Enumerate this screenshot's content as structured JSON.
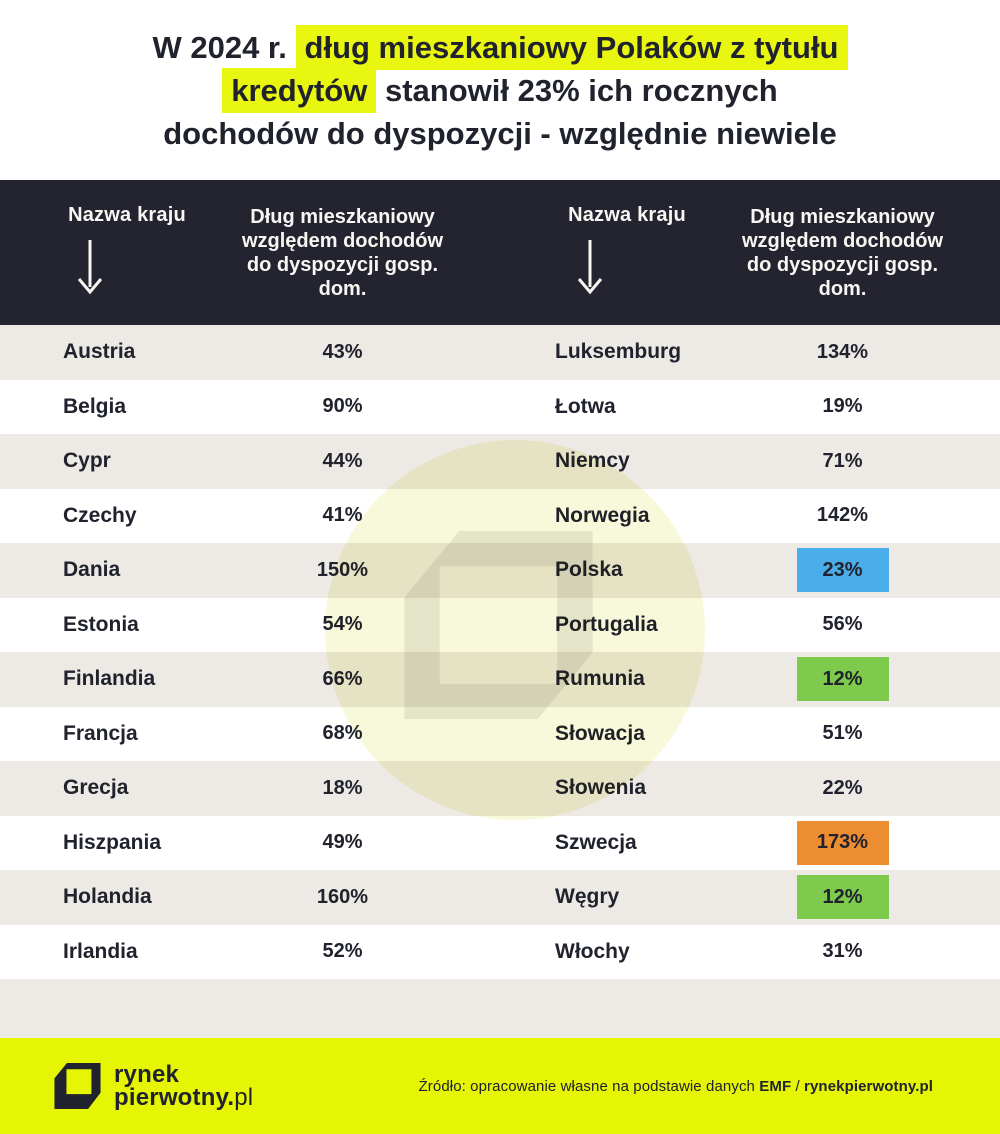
{
  "colors": {
    "header_bg": "#23242f",
    "text_dark": "#20222d",
    "stripe": "#edeae5",
    "row_white": "#ffffff",
    "highlight_yellow": "#e9f60f",
    "footer_yellow": "#e5f503",
    "box_blue": "#4aade9",
    "box_green": "#7dca4d",
    "box_orange": "#ec8d32",
    "watermark_circle": "#f8f8da",
    "watermark_cube": "#ebebeb",
    "header_text": "#f7f6f2"
  },
  "title": {
    "full_text": "W 2024 r. dług mieszkaniowy Polaków z tytułu kredytów stanowił 23% ich rocznych dochodów do dyspozycji - względnie niewiele",
    "lines": [
      {
        "segments": [
          {
            "text": "W 2024 r. ",
            "hl": false
          },
          {
            "text": "dług mieszkaniowy Polaków z tytułu",
            "hl": true
          }
        ]
      },
      {
        "segments": [
          {
            "text": "kredytów",
            "hl": true
          },
          {
            "text": " stanowił 23% ich rocznych",
            "hl": false
          }
        ]
      },
      {
        "segments": [
          {
            "text": "dochodów do dyspozycji - względnie niewiele",
            "hl": false
          }
        ]
      }
    ]
  },
  "table": {
    "header": {
      "country_label": "Nazwa kraju",
      "value_label": "Dług mieszkaniowy względem dochodów do dyspozycji gosp. dom.",
      "value_label_lines": [
        "Dług mieszkaniowy",
        "względem dochodów",
        "do dyspozycji gosp.",
        "dom."
      ]
    },
    "left_rows": [
      {
        "country": "Austria",
        "value": "43%",
        "highlight": null
      },
      {
        "country": "Belgia",
        "value": "90%",
        "highlight": null
      },
      {
        "country": "Cypr",
        "value": "44%",
        "highlight": null
      },
      {
        "country": "Czechy",
        "value": "41%",
        "highlight": null
      },
      {
        "country": "Dania",
        "value": "150%",
        "highlight": null
      },
      {
        "country": "Estonia",
        "value": "54%",
        "highlight": null
      },
      {
        "country": "Finlandia",
        "value": "66%",
        "highlight": null
      },
      {
        "country": "Francja",
        "value": "68%",
        "highlight": null
      },
      {
        "country": "Grecja",
        "value": "18%",
        "highlight": null
      },
      {
        "country": "Hiszpania",
        "value": "49%",
        "highlight": null
      },
      {
        "country": "Holandia",
        "value": "160%",
        "highlight": null
      },
      {
        "country": "Irlandia",
        "value": "52%",
        "highlight": null
      }
    ],
    "right_rows": [
      {
        "country": "Luksemburg",
        "value": "134%",
        "highlight": null
      },
      {
        "country": "Łotwa",
        "value": "19%",
        "highlight": null
      },
      {
        "country": "Niemcy",
        "value": "71%",
        "highlight": null
      },
      {
        "country": "Norwegia",
        "value": "142%",
        "highlight": null
      },
      {
        "country": "Polska",
        "value": "23%",
        "highlight": "box_blue"
      },
      {
        "country": "Portugalia",
        "value": "56%",
        "highlight": null
      },
      {
        "country": "Rumunia",
        "value": "12%",
        "highlight": "box_green"
      },
      {
        "country": "Słowacja",
        "value": "51%",
        "highlight": null
      },
      {
        "country": "Słowenia",
        "value": "22%",
        "highlight": null
      },
      {
        "country": "Szwecja",
        "value": "173%",
        "highlight": "box_orange"
      },
      {
        "country": "Węgry",
        "value": "12%",
        "highlight": "box_green"
      },
      {
        "country": "Włochy",
        "value": "31%",
        "highlight": null
      }
    ]
  },
  "footer": {
    "logo_line1": "rynek",
    "logo_line2_bold": "pierwotny.",
    "logo_line2_light": "pl",
    "source_prefix": "Źródło: opracowanie własne na podstawie danych ",
    "source_emf": "EMF",
    "source_sep": " / ",
    "source_site": "rynekpierwotny.pl"
  },
  "chart_data": {
    "type": "table",
    "title": "W 2024 r. dług mieszkaniowy Polaków z tytułu kredytów stanowił 23% ich rocznych dochodów do dyspozycji - względnie niewiele",
    "columns": [
      "Nazwa kraju",
      "Dług mieszkaniowy względem dochodów do dyspozycji gosp. dom. (%)"
    ],
    "rows": [
      [
        "Austria",
        43
      ],
      [
        "Belgia",
        90
      ],
      [
        "Cypr",
        44
      ],
      [
        "Czechy",
        41
      ],
      [
        "Dania",
        150
      ],
      [
        "Estonia",
        54
      ],
      [
        "Finlandia",
        66
      ],
      [
        "Francja",
        68
      ],
      [
        "Grecja",
        18
      ],
      [
        "Hiszpania",
        49
      ],
      [
        "Holandia",
        160
      ],
      [
        "Irlandia",
        52
      ],
      [
        "Luksemburg",
        134
      ],
      [
        "Łotwa",
        19
      ],
      [
        "Niemcy",
        71
      ],
      [
        "Norwegia",
        142
      ],
      [
        "Polska",
        23
      ],
      [
        "Portugalia",
        56
      ],
      [
        "Rumunia",
        12
      ],
      [
        "Słowacja",
        51
      ],
      [
        "Słowenia",
        22
      ],
      [
        "Szwecja",
        173
      ],
      [
        "Węgry",
        12
      ],
      [
        "Włochy",
        31
      ]
    ],
    "highlighted_rows": {
      "Polska": "blue",
      "Rumunia": "green",
      "Szwecja": "orange",
      "Węgry": "green"
    },
    "source": "Źródło: opracowanie własne na podstawie danych EMF / rynekpierwotny.pl"
  }
}
